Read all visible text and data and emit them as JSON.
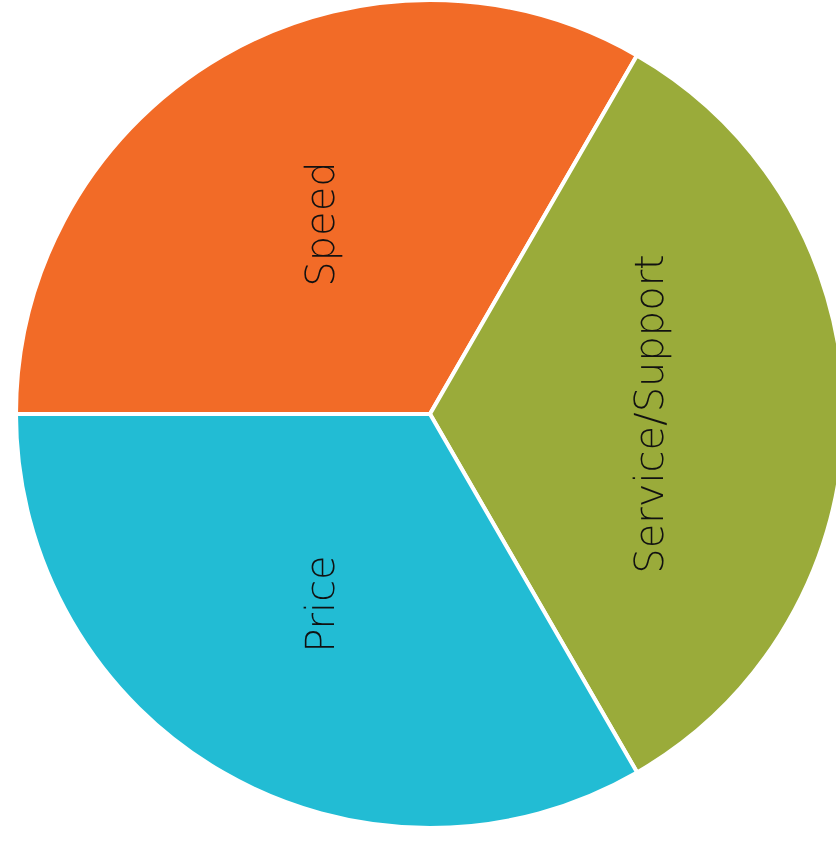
{
  "chart_data": {
    "type": "pie",
    "categories": [
      "Speed",
      "Service/Support",
      "Price"
    ],
    "values": [
      33.33,
      33.33,
      33.34
    ],
    "colors": [
      "#f26b27",
      "#9aab3a",
      "#22bcd4"
    ],
    "legend": false
  }
}
